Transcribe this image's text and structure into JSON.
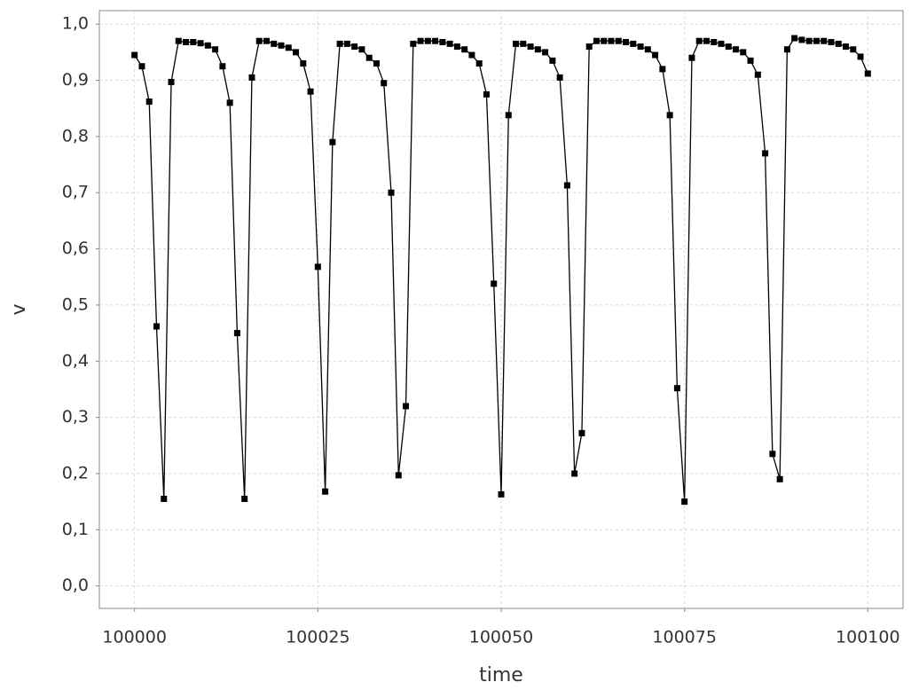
{
  "chart_data": {
    "type": "line",
    "x_label": "time",
    "y_label": "v",
    "color": "#000000",
    "grid": true,
    "xlim": [
      99995.2,
      100104.8
    ],
    "xticks": [
      100000,
      100025,
      100050,
      100075,
      100100
    ],
    "ylim": [
      -0.04,
      1.024
    ],
    "yticks": [
      {
        "value": 0.0,
        "label": "0,0"
      },
      {
        "value": 0.1,
        "label": "0,1"
      },
      {
        "value": 0.2,
        "label": "0,2"
      },
      {
        "value": 0.3,
        "label": "0,3"
      },
      {
        "value": 0.4,
        "label": "0,4"
      },
      {
        "value": 0.5,
        "label": "0,5"
      },
      {
        "value": 0.6,
        "label": "0,6"
      },
      {
        "value": 0.7,
        "label": "0,7"
      },
      {
        "value": 0.8,
        "label": "0,8"
      },
      {
        "value": 0.9,
        "label": "0,9"
      },
      {
        "value": 1.0,
        "label": "1,0"
      }
    ],
    "x": [
      100000,
      100001,
      100002,
      100003,
      100004,
      100005,
      100006,
      100007,
      100008,
      100009,
      100010,
      100011,
      100012,
      100013,
      100014,
      100015,
      100016,
      100017,
      100018,
      100019,
      100020,
      100021,
      100022,
      100023,
      100024,
      100025,
      100026,
      100027,
      100028,
      100029,
      100030,
      100031,
      100032,
      100033,
      100034,
      100035,
      100036,
      100037,
      100038,
      100039,
      100040,
      100041,
      100042,
      100043,
      100044,
      100045,
      100046,
      100047,
      100048,
      100049,
      100050,
      100051,
      100052,
      100053,
      100054,
      100055,
      100056,
      100057,
      100058,
      100059,
      100060,
      100061,
      100062,
      100063,
      100064,
      100065,
      100066,
      100067,
      100068,
      100069,
      100070,
      100071,
      100072,
      100073,
      100074,
      100075,
      100076,
      100077,
      100078,
      100079,
      100080,
      100081,
      100082,
      100083,
      100084,
      100085,
      100086,
      100087,
      100088,
      100089,
      100090,
      100091,
      100092,
      100093,
      100094,
      100095,
      100096,
      100097,
      100098,
      100099,
      100100
    ],
    "values": [
      0.945,
      0.925,
      0.862,
      0.462,
      0.155,
      0.897,
      0.97,
      0.968,
      0.968,
      0.966,
      0.962,
      0.955,
      0.925,
      0.86,
      0.45,
      0.155,
      0.905,
      0.97,
      0.97,
      0.965,
      0.962,
      0.958,
      0.95,
      0.93,
      0.88,
      0.568,
      0.168,
      0.79,
      0.965,
      0.965,
      0.96,
      0.955,
      0.94,
      0.93,
      0.895,
      0.7,
      0.197,
      0.32,
      0.965,
      0.97,
      0.97,
      0.97,
      0.968,
      0.965,
      0.96,
      0.955,
      0.945,
      0.93,
      0.875,
      0.538,
      0.163,
      0.838,
      0.965,
      0.965,
      0.96,
      0.955,
      0.95,
      0.935,
      0.905,
      0.713,
      0.2,
      0.272,
      0.96,
      0.97,
      0.97,
      0.97,
      0.97,
      0.968,
      0.965,
      0.96,
      0.955,
      0.945,
      0.92,
      0.838,
      0.352,
      0.15,
      0.94,
      0.97,
      0.97,
      0.968,
      0.965,
      0.96,
      0.955,
      0.95,
      0.935,
      0.91,
      0.77,
      0.235,
      0.19,
      0.955,
      0.975,
      0.972,
      0.97,
      0.97,
      0.97,
      0.968,
      0.965,
      0.96,
      0.955,
      0.942,
      0.912
    ]
  }
}
